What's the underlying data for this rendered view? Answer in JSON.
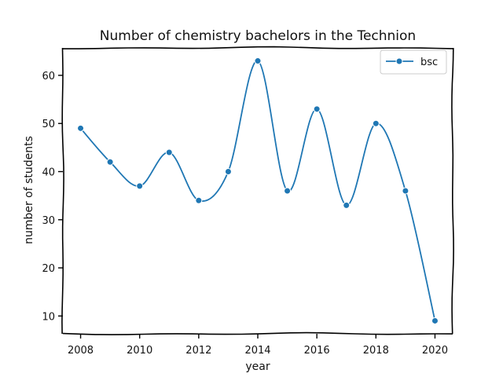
{
  "chart_data": {
    "type": "line",
    "title": "Number of chemistry bachelors in the Technion",
    "xlabel": "year",
    "ylabel": "number of students",
    "x": [
      2008,
      2009,
      2010,
      2011,
      2012,
      2013,
      2014,
      2015,
      2016,
      2017,
      2018,
      2019,
      2020
    ],
    "series": [
      {
        "name": "bsc",
        "color": "#1f77b4",
        "marker": "circle",
        "values": [
          49,
          42,
          37,
          44,
          34,
          40,
          63,
          36,
          53,
          33,
          50,
          36,
          9
        ]
      }
    ],
    "xlim": [
      2007.4,
      2020.6
    ],
    "ylim": [
      6.3,
      65.7
    ],
    "xticks": [
      "2008",
      "2010",
      "2012",
      "2014",
      "2016",
      "2018",
      "2020"
    ],
    "yticks": [
      "10",
      "20",
      "30",
      "40",
      "50",
      "60"
    ],
    "legend_position": "top-right",
    "grid": false,
    "style": "hand-drawn (xkcd-like) axes"
  }
}
